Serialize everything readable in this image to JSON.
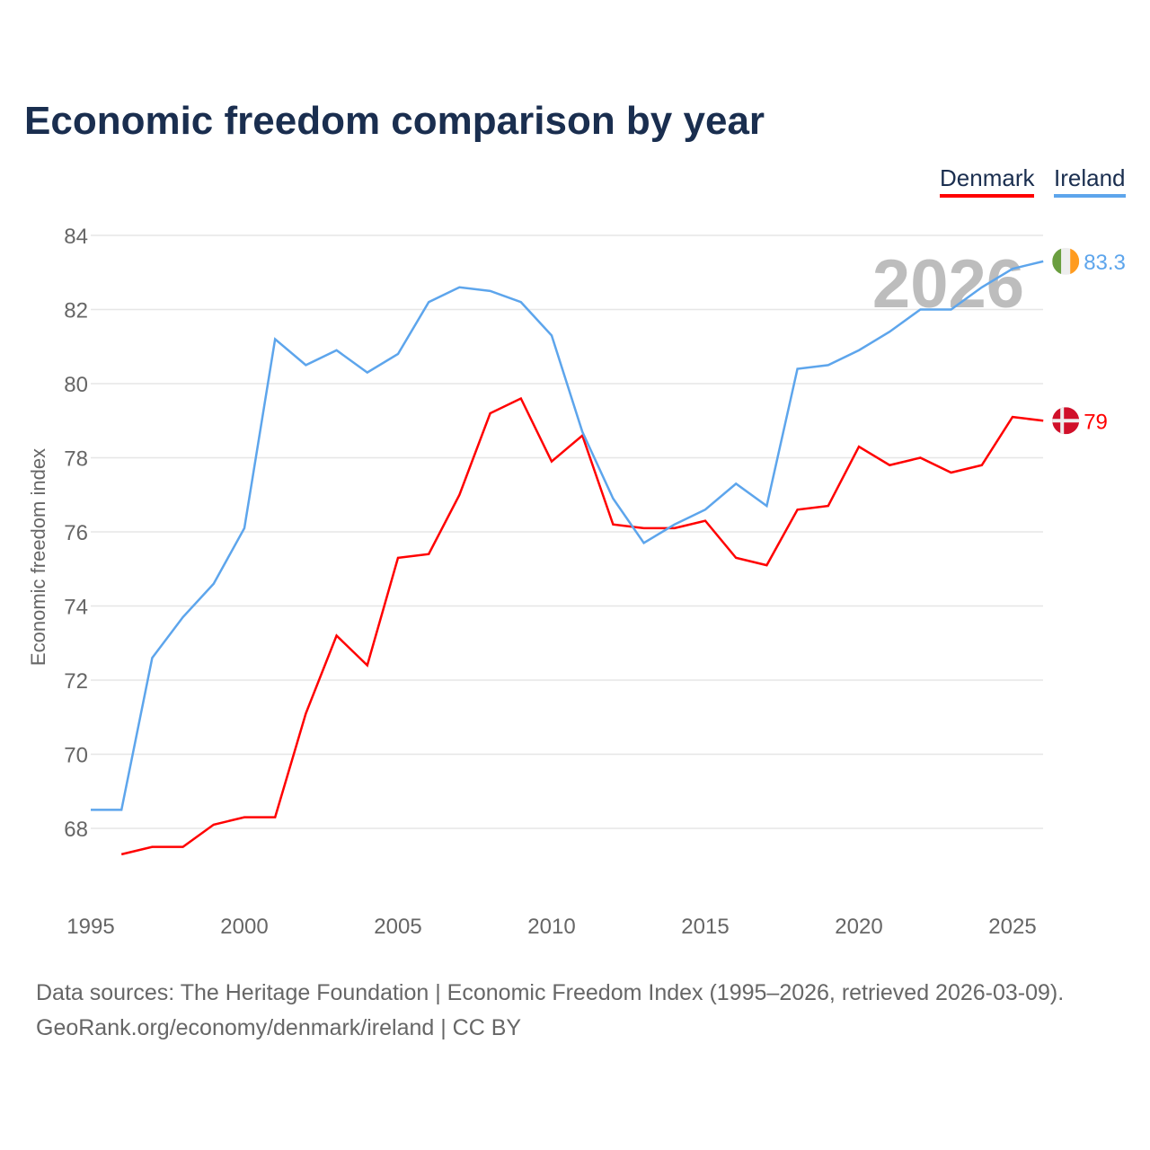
{
  "title": "Economic freedom comparison by year",
  "legend": [
    {
      "name": "Denmark",
      "color": "#ff0000"
    },
    {
      "name": "Ireland",
      "color": "#5da5ec"
    }
  ],
  "year_watermark": "2026",
  "source_line1": "Data sources: The Heritage Foundation | Economic Freedom Index (1995–2026, retrieved 2026-03-09).",
  "source_line2": "GeoRank.org/economy/denmark/ireland | CC BY",
  "chart_data": {
    "type": "line",
    "title": "Economic freedom comparison by year",
    "xlabel": "",
    "ylabel": "Economic freedom index",
    "xlim": [
      1995,
      2026
    ],
    "ylim": [
      66,
      85
    ],
    "xticks": [
      1995,
      2000,
      2005,
      2010,
      2015,
      2020,
      2025
    ],
    "yticks": [
      68,
      70,
      72,
      74,
      76,
      78,
      80,
      82,
      84
    ],
    "grid": true,
    "legend_position": "top-right",
    "series": [
      {
        "name": "Denmark",
        "color": "#ff0000",
        "end_label": "79",
        "flag": "denmark-flag",
        "x": [
          1996,
          1997,
          1998,
          1999,
          2000,
          2001,
          2002,
          2003,
          2004,
          2005,
          2006,
          2007,
          2008,
          2009,
          2010,
          2011,
          2012,
          2013,
          2014,
          2015,
          2016,
          2017,
          2018,
          2019,
          2020,
          2021,
          2022,
          2023,
          2024,
          2025,
          2026
        ],
        "values": [
          67.3,
          67.5,
          67.5,
          68.1,
          68.3,
          68.3,
          71.1,
          73.2,
          72.4,
          75.3,
          75.4,
          77.0,
          79.2,
          79.6,
          77.9,
          78.6,
          76.2,
          76.1,
          76.1,
          76.3,
          75.3,
          75.1,
          76.6,
          76.7,
          78.3,
          77.8,
          78.0,
          77.6,
          77.8,
          79.1,
          79.0
        ]
      },
      {
        "name": "Ireland",
        "color": "#5da5ec",
        "end_label": "83.3",
        "flag": "ireland-flag",
        "x": [
          1995,
          1996,
          1997,
          1998,
          1999,
          2000,
          2001,
          2002,
          2003,
          2004,
          2005,
          2006,
          2007,
          2008,
          2009,
          2010,
          2011,
          2012,
          2013,
          2014,
          2015,
          2016,
          2017,
          2018,
          2019,
          2020,
          2021,
          2022,
          2023,
          2024,
          2025,
          2026
        ],
        "values": [
          68.5,
          68.5,
          72.6,
          73.7,
          74.6,
          76.1,
          81.2,
          80.5,
          80.9,
          80.3,
          80.8,
          82.2,
          82.6,
          82.5,
          82.2,
          81.3,
          78.7,
          76.9,
          75.7,
          76.2,
          76.6,
          77.3,
          76.7,
          80.4,
          80.5,
          80.9,
          81.4,
          82.0,
          82.0,
          82.6,
          83.1,
          83.3
        ]
      }
    ]
  }
}
